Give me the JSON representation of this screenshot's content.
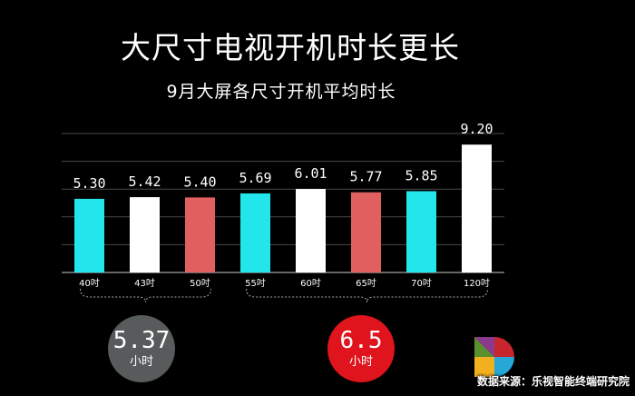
{
  "title": "大尺寸电视开机时长更长",
  "subtitle": "9月大屏各尺寸开机平均时长",
  "chart_data": {
    "type": "bar",
    "categories": [
      "40吋",
      "43吋",
      "50吋",
      "55吋",
      "60吋",
      "65吋",
      "70吋",
      "120吋"
    ],
    "values": [
      5.3,
      5.42,
      5.4,
      5.69,
      6.01,
      5.77,
      5.85,
      9.2
    ],
    "value_labels": [
      "5.30",
      "5.42",
      "5.40",
      "5.69",
      "6.01",
      "5.77",
      "5.85",
      "9.20"
    ],
    "bar_colors": [
      "#22e6ec",
      "#ffffff",
      "#e06060",
      "#22e6ec",
      "#ffffff",
      "#e06060",
      "#22e6ec",
      "#ffffff"
    ],
    "ylim": [
      0,
      10
    ],
    "grid": true,
    "xlabel": "",
    "ylabel": ""
  },
  "groups": [
    {
      "value": "5.37",
      "unit": "小时",
      "color": "#575b5b"
    },
    {
      "value": "6.5",
      "unit": "小时",
      "color": "#e0141c"
    }
  ],
  "source": "数据来源：乐视智能终端研究院",
  "colors": {
    "background": "#000000",
    "gridline": "#4a4a4a",
    "bracket": "#aaaaaa"
  }
}
